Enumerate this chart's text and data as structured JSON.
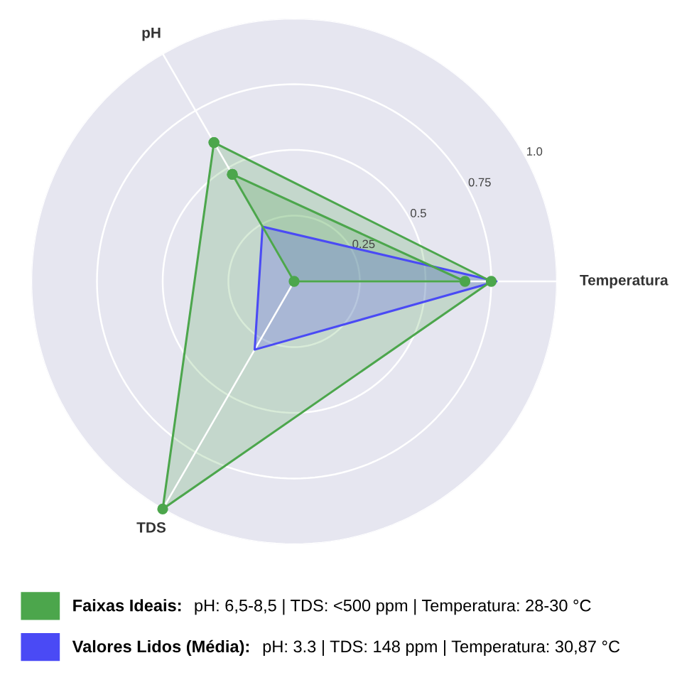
{
  "chart_data": {
    "type": "radar",
    "categories": [
      "pH",
      "Temperatura",
      "TDS"
    ],
    "series": [
      {
        "name": "Faixas Ideais:",
        "color": "#4ca64c",
        "values": [
          0.61,
          0.75,
          1.0
        ],
        "marker": "circle"
      },
      {
        "color": "#4ca64c",
        "values": [
          0.47,
          0.65,
          0
        ],
        "marker": "circle"
      },
      {
        "name": "Valores Lidos (Média):",
        "color": "#4a4af5",
        "values": [
          0.24,
          0.77,
          0.3
        ],
        "marker": "none"
      }
    ],
    "ylim": [
      0,
      1
    ],
    "yticks": [
      0.25,
      0.5,
      0.75,
      {
        "value": 1,
        "label": "1.0"
      }
    ],
    "grid": true,
    "legend": "bottom left",
    "annotations": [
      "pH: 6,5-8,5 | TDS: <500 ppm | Temperatura: 28-30 °C",
      "pH: 3.3 | TDS: 148 ppm | Temperatura: 30,87 °C"
    ]
  }
}
